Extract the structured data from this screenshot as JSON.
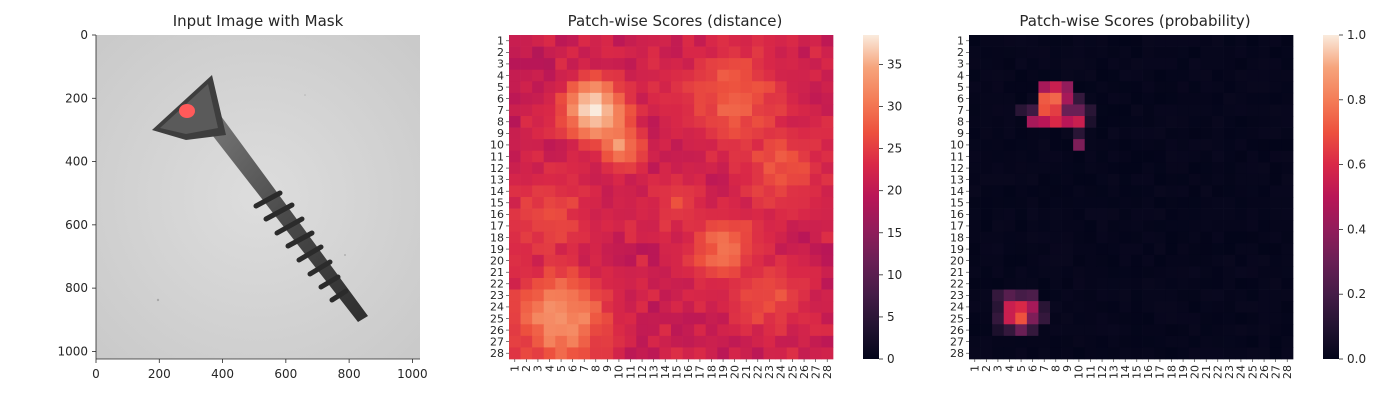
{
  "panels": [
    {
      "title": "Input Image with Mask",
      "type": "image",
      "x_ticks": [
        "0",
        "200",
        "400",
        "600",
        "800",
        "1000"
      ],
      "y_ticks": [
        "0",
        "200",
        "400",
        "600",
        "800",
        "1000"
      ],
      "extent": [
        0,
        1024
      ],
      "content": "screw-on-gray-background-with-red-mask-at-head"
    },
    {
      "title": "Patch-wise Scores (distance)",
      "type": "heatmap",
      "colorbar_ticks": [
        "0",
        "5",
        "10",
        "15",
        "20",
        "25",
        "30",
        "35"
      ],
      "colorbar_range": [
        0,
        38.5
      ]
    },
    {
      "title": "Patch-wise Scores (probability)",
      "type": "heatmap",
      "colorbar_ticks": [
        "0.0",
        "0.2",
        "0.4",
        "0.6",
        "0.8",
        "1.0"
      ],
      "colorbar_range": [
        0,
        1
      ]
    }
  ],
  "chart_data": [
    {
      "type": "image",
      "title": "Input Image with Mask",
      "xlim": [
        0,
        1024
      ],
      "ylim": [
        1024,
        0
      ],
      "x_ticks": [
        0,
        200,
        400,
        600,
        800,
        1000
      ],
      "y_ticks": [
        0,
        200,
        400,
        600,
        800,
        1000
      ]
    },
    {
      "type": "heatmap",
      "title": "Patch-wise Scores (distance)",
      "rows": 28,
      "cols": 28,
      "row_labels": [
        "1",
        "2",
        "3",
        "4",
        "5",
        "6",
        "7",
        "8",
        "9",
        "10",
        "11",
        "12",
        "13",
        "14",
        "15",
        "16",
        "17",
        "18",
        "19",
        "20",
        "21",
        "22",
        "23",
        "24",
        "25",
        "26",
        "27",
        "28"
      ],
      "col_labels": [
        "1",
        "2",
        "3",
        "4",
        "5",
        "6",
        "7",
        "8",
        "9",
        "10",
        "11",
        "12",
        "13",
        "14",
        "15",
        "16",
        "17",
        "18",
        "19",
        "20",
        "21",
        "22",
        "23",
        "24",
        "25",
        "26",
        "27",
        "28"
      ],
      "colormap": "rocket",
      "vmin": 0,
      "vmax": 38.5,
      "base_level": 20,
      "hotspots": [
        {
          "row": 7,
          "col": 8,
          "value": 38,
          "radius": 2.0
        },
        {
          "row": 10,
          "col": 10,
          "value": 33,
          "radius": 1.5
        },
        {
          "row": 25,
          "col": 5,
          "value": 33,
          "radius": 3.0
        },
        {
          "row": 19,
          "col": 19,
          "value": 29,
          "radius": 2.5
        },
        {
          "row": 6,
          "col": 20,
          "value": 28,
          "radius": 3.5
        },
        {
          "row": 12,
          "col": 24,
          "value": 27,
          "radius": 3.0
        },
        {
          "row": 16,
          "col": 4,
          "value": 26,
          "radius": 3.0
        },
        {
          "row": 23,
          "col": 23,
          "value": 27,
          "radius": 2.5
        },
        {
          "row": 15,
          "col": 15,
          "value": 26,
          "radius": 2.0
        }
      ]
    },
    {
      "type": "heatmap",
      "title": "Patch-wise Scores (probability)",
      "rows": 28,
      "cols": 28,
      "row_labels": [
        "1",
        "2",
        "3",
        "4",
        "5",
        "6",
        "7",
        "8",
        "9",
        "10",
        "11",
        "12",
        "13",
        "14",
        "15",
        "16",
        "17",
        "18",
        "19",
        "20",
        "21",
        "22",
        "23",
        "24",
        "25",
        "26",
        "27",
        "28"
      ],
      "col_labels": [
        "1",
        "2",
        "3",
        "4",
        "5",
        "6",
        "7",
        "8",
        "9",
        "10",
        "11",
        "12",
        "13",
        "14",
        "15",
        "16",
        "17",
        "18",
        "19",
        "20",
        "21",
        "22",
        "23",
        "24",
        "25",
        "26",
        "27",
        "28"
      ],
      "colormap": "rocket",
      "vmin": 0,
      "vmax": 1,
      "base_level": 0.02,
      "cells": [
        {
          "row": 5,
          "col": 7,
          "value": 0.45
        },
        {
          "row": 5,
          "col": 8,
          "value": 0.55
        },
        {
          "row": 5,
          "col": 9,
          "value": 0.4
        },
        {
          "row": 6,
          "col": 7,
          "value": 0.72
        },
        {
          "row": 6,
          "col": 8,
          "value": 0.75
        },
        {
          "row": 6,
          "col": 9,
          "value": 0.45
        },
        {
          "row": 6,
          "col": 10,
          "value": 0.15
        },
        {
          "row": 7,
          "col": 5,
          "value": 0.12
        },
        {
          "row": 7,
          "col": 6,
          "value": 0.18
        },
        {
          "row": 7,
          "col": 7,
          "value": 0.7
        },
        {
          "row": 7,
          "col": 8,
          "value": 0.65
        },
        {
          "row": 7,
          "col": 9,
          "value": 0.3
        },
        {
          "row": 7,
          "col": 10,
          "value": 0.3
        },
        {
          "row": 7,
          "col": 11,
          "value": 0.12
        },
        {
          "row": 8,
          "col": 6,
          "value": 0.45
        },
        {
          "row": 8,
          "col": 7,
          "value": 0.5
        },
        {
          "row": 8,
          "col": 8,
          "value": 0.6
        },
        {
          "row": 8,
          "col": 9,
          "value": 0.5
        },
        {
          "row": 8,
          "col": 10,
          "value": 0.55
        },
        {
          "row": 8,
          "col": 11,
          "value": 0.08
        },
        {
          "row": 9,
          "col": 10,
          "value": 0.12
        },
        {
          "row": 10,
          "col": 10,
          "value": 0.35
        },
        {
          "row": 23,
          "col": 3,
          "value": 0.15
        },
        {
          "row": 23,
          "col": 4,
          "value": 0.25
        },
        {
          "row": 23,
          "col": 5,
          "value": 0.2
        },
        {
          "row": 23,
          "col": 6,
          "value": 0.22
        },
        {
          "row": 24,
          "col": 3,
          "value": 0.12
        },
        {
          "row": 24,
          "col": 4,
          "value": 0.55
        },
        {
          "row": 24,
          "col": 5,
          "value": 0.6
        },
        {
          "row": 24,
          "col": 6,
          "value": 0.45
        },
        {
          "row": 24,
          "col": 7,
          "value": 0.12
        },
        {
          "row": 25,
          "col": 3,
          "value": 0.15
        },
        {
          "row": 25,
          "col": 4,
          "value": 0.55
        },
        {
          "row": 25,
          "col": 5,
          "value": 0.7
        },
        {
          "row": 25,
          "col": 6,
          "value": 0.35
        },
        {
          "row": 25,
          "col": 7,
          "value": 0.15
        },
        {
          "row": 26,
          "col": 3,
          "value": 0.08
        },
        {
          "row": 26,
          "col": 4,
          "value": 0.15
        },
        {
          "row": 26,
          "col": 5,
          "value": 0.3
        },
        {
          "row": 26,
          "col": 6,
          "value": 0.15
        }
      ]
    }
  ]
}
